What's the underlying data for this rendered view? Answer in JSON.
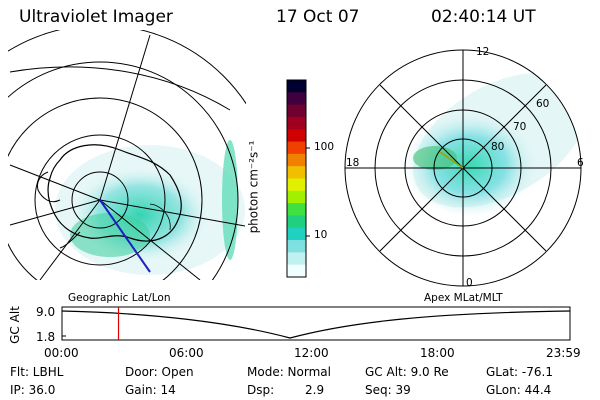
{
  "header": {
    "title": "Ultraviolet Imager",
    "date": "17 Oct 07",
    "time": "02:40:14 UT"
  },
  "left_map": {
    "projection_label": "Geographic Lat/Lon"
  },
  "right_map": {
    "projection_label": "Apex MLat/MLT",
    "mlt_labels": [
      "12",
      "18",
      "6",
      "0"
    ],
    "mlat_labels": [
      "60",
      "70",
      "80"
    ]
  },
  "colorbar": {
    "title": "photon cm⁻²s⁻¹",
    "ticks": [
      "100",
      "10"
    ],
    "colors": [
      "#000030",
      "#400040",
      "#700030",
      "#a00020",
      "#d00000",
      "#f04000",
      "#f08000",
      "#f0c000",
      "#e0f000",
      "#a0f000",
      "#40e040",
      "#20d080",
      "#20d0c0",
      "#80e0e0",
      "#c0f0f0",
      "#f0ffff"
    ]
  },
  "altitude_plot": {
    "axis_title": "GC Alt",
    "y_ticks": [
      "9.0",
      "1.8"
    ],
    "x_ticks": [
      "00:00",
      "06:00",
      "12:00",
      "18:00",
      "23:59"
    ],
    "current_marker_hours": 2.67
  },
  "status": {
    "filter": "Flt: LBHL",
    "ip": "IP: 36.0",
    "door": "Door: Open",
    "gain": "Gain: 14",
    "mode": "Mode: Normal",
    "dsp_label": "Dsp:",
    "dsp_value": "2.9",
    "gc_alt": "GC Alt: 9.0 Re",
    "seq": "Seq: 39",
    "glat": "GLat: -76.1",
    "glon": "GLon:  44.4"
  }
}
